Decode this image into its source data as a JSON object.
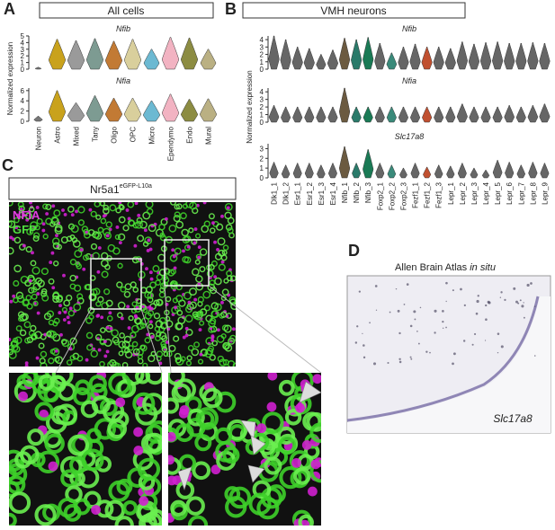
{
  "panel_a": {
    "label": "A",
    "header": "All cells",
    "ylabel": "Normalized expression",
    "categories": [
      "Neuron",
      "Astro",
      "Mixed",
      "Tany",
      "Oligo",
      "OPC",
      "Micro",
      "Ependymo",
      "Endo",
      "Mural"
    ],
    "colors": [
      "#777777",
      "#c9a21c",
      "#9a9a9a",
      "#7d9b92",
      "#c27a34",
      "#d9cf9c",
      "#6cb9d2",
      "#f2b3c2",
      "#8c8c42",
      "#bab083"
    ],
    "genes": [
      {
        "name": "Nfib",
        "ylim": [
          0,
          5
        ],
        "yticks": [
          0,
          1,
          2,
          3,
          4,
          5
        ],
        "max": [
          0.3,
          4.5,
          4.3,
          4.6,
          4.2,
          4.5,
          3,
          4.8,
          4.7,
          3
        ]
      },
      {
        "name": "Nfia",
        "ylim": [
          0,
          6.5
        ],
        "yticks": [
          0,
          2,
          4,
          6
        ],
        "max": [
          1,
          6,
          3.6,
          5,
          4.5,
          4.5,
          4,
          5.3,
          4.3,
          4.4
        ]
      }
    ]
  },
  "panel_b": {
    "label": "B",
    "header": "VMH neurons",
    "ylabel": "Normalized expression",
    "categories": [
      "Dlk1_1",
      "Dlk1_2",
      "Esr1_1",
      "Esr1_2",
      "Esr1_3",
      "Esr1_4",
      "Nfib_1",
      "Nfib_2",
      "Nfib_3",
      "Foxp2_1",
      "Foxp2_2",
      "Foxp2_3",
      "Fezf1_1",
      "Fezf1_2",
      "Fezf1_3",
      "Lepr_1",
      "Lepr_2",
      "Lepr_3",
      "Lepr_4",
      "Lepr_5",
      "Lepr_6",
      "Lepr_7",
      "Lepr_8",
      "Lepr_9"
    ],
    "colors": [
      "#666666",
      "#666666",
      "#666666",
      "#666666",
      "#666666",
      "#666666",
      "#6b5a40",
      "#2a7a6a",
      "#1a7a55",
      "#666666",
      "#3a8a7a",
      "#666666",
      "#666666",
      "#c05030",
      "#666666",
      "#666666",
      "#666666",
      "#666666",
      "#666666",
      "#666666",
      "#666666",
      "#666666",
      "#666666",
      "#666666"
    ],
    "genes": [
      {
        "name": "Nfib",
        "ylim": [
          0,
          4.5
        ],
        "yticks": [
          0,
          1,
          2,
          3,
          4
        ],
        "max": [
          4.5,
          4,
          3,
          2.8,
          2,
          2.6,
          4.2,
          4,
          4.3,
          3.5,
          2.2,
          3,
          3.4,
          3,
          3,
          2.8,
          3.7,
          3.4,
          3.6,
          3.7,
          3.5,
          3.5,
          3.6,
          3.5
        ]
      },
      {
        "name": "Nfia",
        "ylim": [
          0,
          4.5
        ],
        "yticks": [
          0,
          1,
          2,
          3,
          4
        ],
        "max": [
          2.2,
          2,
          2,
          2,
          2,
          2,
          4.5,
          2,
          2,
          2,
          2,
          2,
          2,
          2,
          2,
          2,
          2.4,
          2,
          2,
          2,
          2.2,
          2,
          2.2,
          2.4
        ]
      },
      {
        "name": "Slc17a8",
        "ylim": [
          0,
          3.5
        ],
        "yticks": [
          0,
          1,
          2,
          3
        ],
        "max": [
          1.6,
          1.3,
          1.5,
          1.5,
          1.3,
          1.5,
          3.2,
          1.5,
          2.9,
          1.5,
          1.3,
          1,
          1.5,
          1.1,
          1.3,
          1.2,
          1.5,
          1,
          0.8,
          1.8,
          1.6,
          1.3,
          1.6,
          1.5
        ]
      }
    ]
  },
  "panel_c": {
    "label": "C",
    "header": "Nr5a1",
    "superscript": "eGFP-L10a",
    "legend": [
      "NFIA",
      "GFP"
    ]
  },
  "panel_d": {
    "label": "D",
    "title": "Allen Brain Atlas ",
    "title_italic": "in situ",
    "gene": "Slc17a8"
  }
}
